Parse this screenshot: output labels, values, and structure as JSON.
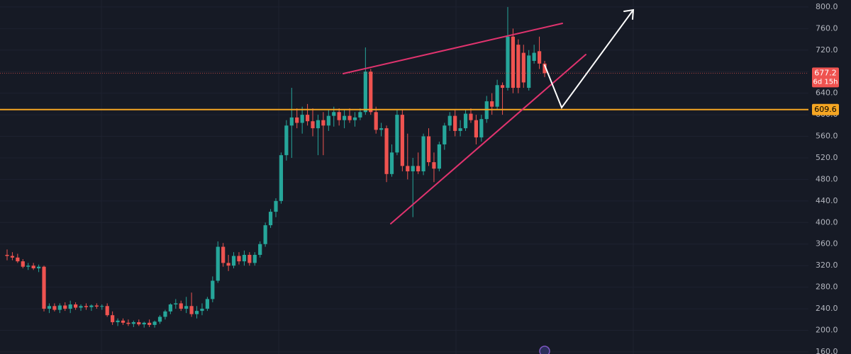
{
  "chart_data": {
    "type": "candlestick",
    "up_color": "#26a69a",
    "down_color": "#ef5350",
    "level_color": "#f5a623",
    "ylim": [
      156,
      813
    ],
    "yticks": [
      {
        "value": 160,
        "label": "160.0"
      },
      {
        "value": 200,
        "label": "200.0"
      },
      {
        "value": 240,
        "label": "240.0"
      },
      {
        "value": 280,
        "label": "280.0"
      },
      {
        "value": 320,
        "label": "320.0"
      },
      {
        "value": 360,
        "label": "360.0"
      },
      {
        "value": 400,
        "label": "400.0"
      },
      {
        "value": 440,
        "label": "440.0"
      },
      {
        "value": 480,
        "label": "480.0"
      },
      {
        "value": 520,
        "label": "520.0"
      },
      {
        "value": 560,
        "label": "560.0"
      },
      {
        "value": 600,
        "label": "600.0"
      },
      {
        "value": 640,
        "label": "640.0"
      },
      {
        "value": 680,
        "label": "680.0"
      },
      {
        "value": 720,
        "label": "720.0"
      },
      {
        "value": 760,
        "label": "760.0"
      },
      {
        "value": 800,
        "label": "800.0"
      }
    ],
    "grid": true,
    "level": 609.6,
    "last_price": {
      "value": 677.2,
      "countdown": "6d 15h"
    },
    "open": [
      340,
      338,
      335,
      328,
      318,
      320,
      315,
      318,
      240,
      245,
      238,
      246,
      240,
      248,
      242,
      245,
      243,
      246,
      244,
      245,
      228,
      215,
      218,
      214,
      212,
      215,
      211,
      214,
      210,
      216,
      225,
      235,
      248,
      250,
      240,
      245,
      230,
      236,
      240,
      258,
      292,
      355,
      325,
      320,
      338,
      328,
      340,
      325,
      340,
      360,
      395,
      420,
      440,
      525,
      580,
      595,
      585,
      600,
      588,
      575,
      590,
      580,
      598,
      605,
      590,
      598,
      590,
      595,
      605,
      680,
      605,
      572,
      575,
      490,
      530,
      600,
      505,
      495,
      505,
      495,
      560,
      512,
      500,
      545,
      580,
      598,
      570,
      575,
      602,
      590,
      558,
      592,
      625,
      615,
      655,
      650,
      745,
      730,
      715,
      650,
      700,
      718,
      695
    ],
    "high": [
      350,
      345,
      342,
      332,
      325,
      325,
      322,
      320,
      250,
      250,
      250,
      252,
      255,
      252,
      248,
      250,
      248,
      250,
      248,
      250,
      235,
      222,
      222,
      220,
      218,
      220,
      216,
      220,
      218,
      228,
      238,
      250,
      258,
      255,
      262,
      270,
      245,
      250,
      262,
      300,
      365,
      362,
      340,
      345,
      345,
      348,
      345,
      345,
      365,
      400,
      425,
      445,
      530,
      590,
      650,
      612,
      615,
      620,
      612,
      600,
      605,
      610,
      615,
      612,
      610,
      612,
      605,
      612,
      725,
      685,
      615,
      585,
      580,
      545,
      610,
      610,
      565,
      520,
      530,
      565,
      575,
      530,
      550,
      585,
      605,
      610,
      590,
      610,
      612,
      600,
      600,
      635,
      640,
      665,
      660,
      800,
      760,
      740,
      730,
      720,
      730,
      745,
      700
    ],
    "low": [
      330,
      330,
      325,
      315,
      312,
      312,
      308,
      235,
      232,
      235,
      232,
      236,
      232,
      238,
      236,
      238,
      236,
      240,
      238,
      225,
      210,
      208,
      210,
      208,
      206,
      208,
      205,
      206,
      205,
      212,
      220,
      230,
      240,
      236,
      232,
      225,
      222,
      228,
      236,
      252,
      288,
      318,
      310,
      315,
      322,
      320,
      320,
      320,
      335,
      355,
      390,
      410,
      435,
      515,
      520,
      575,
      565,
      580,
      560,
      525,
      525,
      570,
      578,
      580,
      575,
      585,
      578,
      590,
      600,
      600,
      565,
      560,
      475,
      485,
      525,
      495,
      480,
      410,
      490,
      488,
      505,
      475,
      495,
      535,
      570,
      560,
      560,
      570,
      585,
      545,
      550,
      585,
      600,
      610,
      600,
      645,
      640,
      640,
      650,
      645,
      695,
      685,
      670
    ],
    "close": [
      338,
      335,
      328,
      318,
      320,
      315,
      318,
      240,
      245,
      238,
      246,
      240,
      248,
      242,
      245,
      243,
      246,
      244,
      245,
      228,
      215,
      218,
      214,
      212,
      215,
      211,
      214,
      210,
      216,
      225,
      235,
      248,
      250,
      240,
      245,
      230,
      236,
      240,
      258,
      292,
      355,
      325,
      320,
      338,
      328,
      340,
      325,
      340,
      360,
      395,
      420,
      440,
      525,
      580,
      595,
      585,
      600,
      588,
      575,
      590,
      580,
      598,
      605,
      590,
      598,
      590,
      595,
      605,
      680,
      605,
      572,
      575,
      490,
      530,
      600,
      505,
      495,
      505,
      495,
      560,
      512,
      500,
      545,
      580,
      598,
      570,
      575,
      602,
      590,
      558,
      592,
      625,
      615,
      655,
      650,
      745,
      650,
      650,
      660,
      710,
      715,
      695,
      677.2
    ]
  }
}
